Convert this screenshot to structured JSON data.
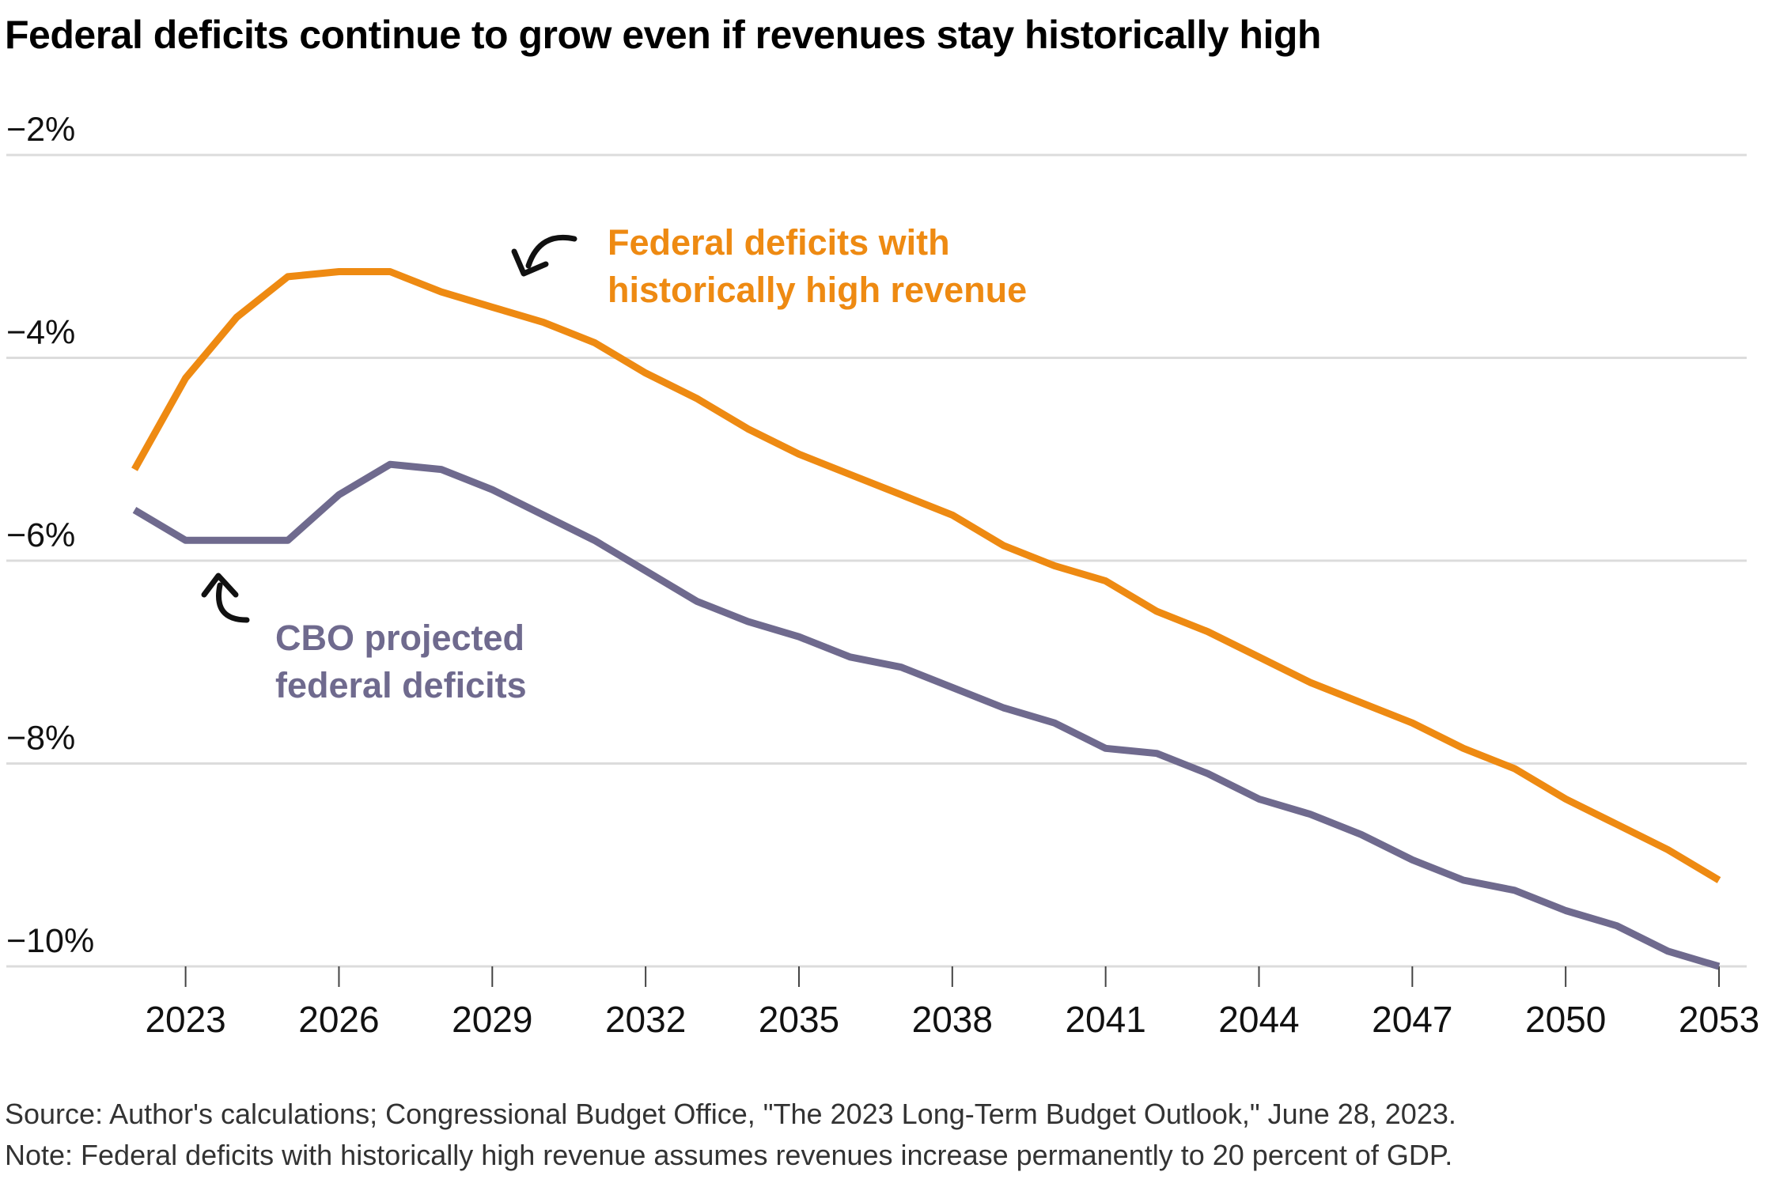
{
  "chart_data": {
    "type": "line",
    "title": "Federal deficits continue to grow even if revenues stay historically high",
    "xlabel": "",
    "ylabel": "",
    "xlim": [
      2022,
      2053
    ],
    "ylim": [
      -10,
      -2
    ],
    "x_ticks": [
      2023,
      2026,
      2029,
      2032,
      2035,
      2038,
      2041,
      2044,
      2047,
      2050,
      2053
    ],
    "y_ticks": [
      -2,
      -4,
      -6,
      -8,
      -10
    ],
    "y_tick_labels": [
      "−2%",
      "−4%",
      "−6%",
      "−8%",
      "−10%"
    ],
    "grid": "horizontal",
    "x": [
      2022,
      2023,
      2024,
      2025,
      2026,
      2027,
      2028,
      2029,
      2030,
      2031,
      2032,
      2033,
      2034,
      2035,
      2036,
      2037,
      2038,
      2039,
      2040,
      2041,
      2042,
      2043,
      2044,
      2045,
      2046,
      2047,
      2048,
      2049,
      2050,
      2051,
      2052,
      2053
    ],
    "series": [
      {
        "name": "Federal deficits with historically high revenue",
        "color": "#ee8a12",
        "values": [
          -5.1,
          -4.2,
          -3.6,
          -3.2,
          -3.15,
          -3.15,
          -3.35,
          -3.5,
          -3.65,
          -3.85,
          -4.15,
          -4.4,
          -4.7,
          -4.95,
          -5.15,
          -5.35,
          -5.55,
          -5.85,
          -6.05,
          -6.2,
          -6.5,
          -6.7,
          -6.95,
          -7.2,
          -7.4,
          -7.6,
          -7.85,
          -8.05,
          -8.35,
          -8.6,
          -8.85,
          -9.15
        ],
        "label_lines": [
          "Federal deficits with",
          "historically high revenue"
        ]
      },
      {
        "name": "CBO projected federal deficits",
        "color": "#6f6a8e",
        "values": [
          -5.5,
          -5.8,
          -5.8,
          -5.8,
          -5.35,
          -5.05,
          -5.1,
          -5.3,
          -5.55,
          -5.8,
          -6.1,
          -6.4,
          -6.6,
          -6.75,
          -6.95,
          -7.05,
          -7.25,
          -7.45,
          -7.6,
          -7.85,
          -7.9,
          -8.1,
          -8.35,
          -8.5,
          -8.7,
          -8.95,
          -9.15,
          -9.25,
          -9.45,
          -9.6,
          -9.85,
          -10.0
        ],
        "label_lines": [
          "CBO projected",
          "federal deficits"
        ]
      }
    ],
    "source": "Source: Author's calculations; Congressional Budget Office, \"The 2023 Long-Term Budget Outlook,\" June 28, 2023.",
    "note": "Note: Federal deficits with historically high revenue assumes revenues increase permanently to 20 percent of GDP."
  }
}
